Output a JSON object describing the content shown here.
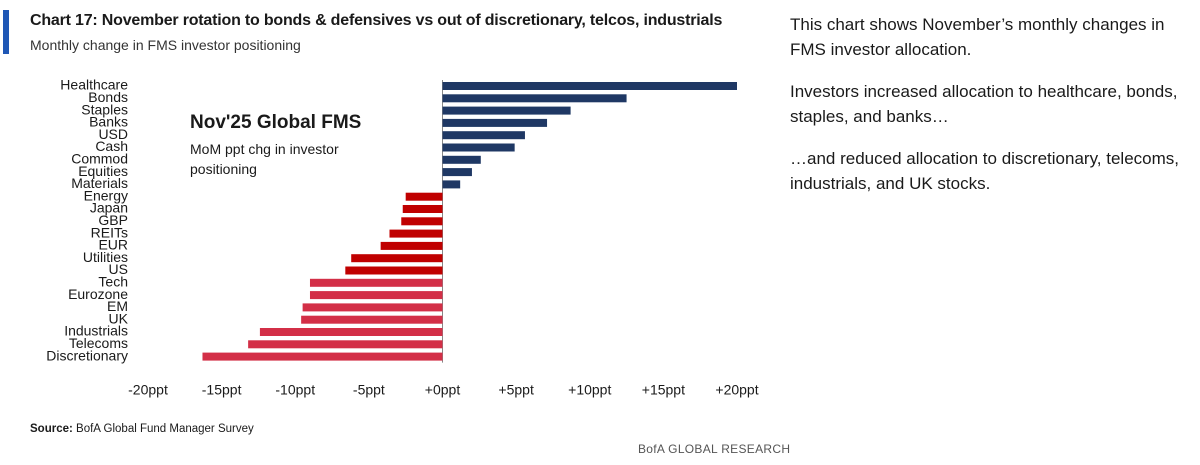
{
  "chart_data": {
    "type": "hbar",
    "title": "Chart 17: November rotation to bonds & defensives vs out of discretionary, telcos, industrials",
    "subtitle": "Monthly change in FMS investor positioning",
    "inset_title": "Nov'25 Global FMS",
    "inset_subtitle": "MoM ppt chg in investor positioning",
    "categories": [
      "Healthcare",
      "Bonds",
      "Staples",
      "Banks",
      "USD",
      "Cash",
      "Commod",
      "Equities",
      "Materials",
      "Energy",
      "Japan",
      "GBP",
      "REITs",
      "EUR",
      "Utilities",
      "US",
      "Tech",
      "Eurozone",
      "EM",
      "UK",
      "Industrials",
      "Telecoms",
      "Discretionary"
    ],
    "values": [
      20.0,
      12.5,
      8.7,
      7.1,
      5.6,
      4.9,
      2.6,
      2.0,
      1.2,
      -2.5,
      -2.7,
      -2.8,
      -3.6,
      -4.2,
      -6.2,
      -6.6,
      -9.0,
      -9.0,
      -9.5,
      -9.6,
      -12.4,
      -13.2,
      -16.3
    ],
    "colors": [
      "#1f3864",
      "#1f3864",
      "#1f3864",
      "#1f3864",
      "#1f3864",
      "#1f3864",
      "#1f3864",
      "#1f3864",
      "#1f3864",
      "#c00000",
      "#c00000",
      "#c00000",
      "#c00000",
      "#c00000",
      "#c00000",
      "#c00000",
      "#d32f47",
      "#d32f47",
      "#d32f47",
      "#d32f47",
      "#d32f47",
      "#d32f47",
      "#d32f47"
    ],
    "xlim": [
      -20,
      20
    ],
    "xticks": [
      {
        "value": -20,
        "label": "-20ppt"
      },
      {
        "value": -15,
        "label": "-15ppt"
      },
      {
        "value": -10,
        "label": "-10ppt"
      },
      {
        "value": -5,
        "label": "-5ppt"
      },
      {
        "value": 0,
        "label": "+0ppt"
      },
      {
        "value": 5,
        "label": "+5ppt"
      },
      {
        "value": 10,
        "label": "+10ppt"
      },
      {
        "value": 15,
        "label": "+15ppt"
      },
      {
        "value": 20,
        "label": "+20ppt"
      }
    ],
    "notes": [
      "This chart shows November’s monthly changes in FMS investor allocation.",
      "Investors increased allocation to healthcare, bonds, staples, and banks…",
      "…and reduced allocation to discretionary, telecoms, industrials, and UK stocks."
    ],
    "source_label": "Source:",
    "source": "BofA Global Fund Manager Survey",
    "footer": "BofA GLOBAL RESEARCH"
  }
}
